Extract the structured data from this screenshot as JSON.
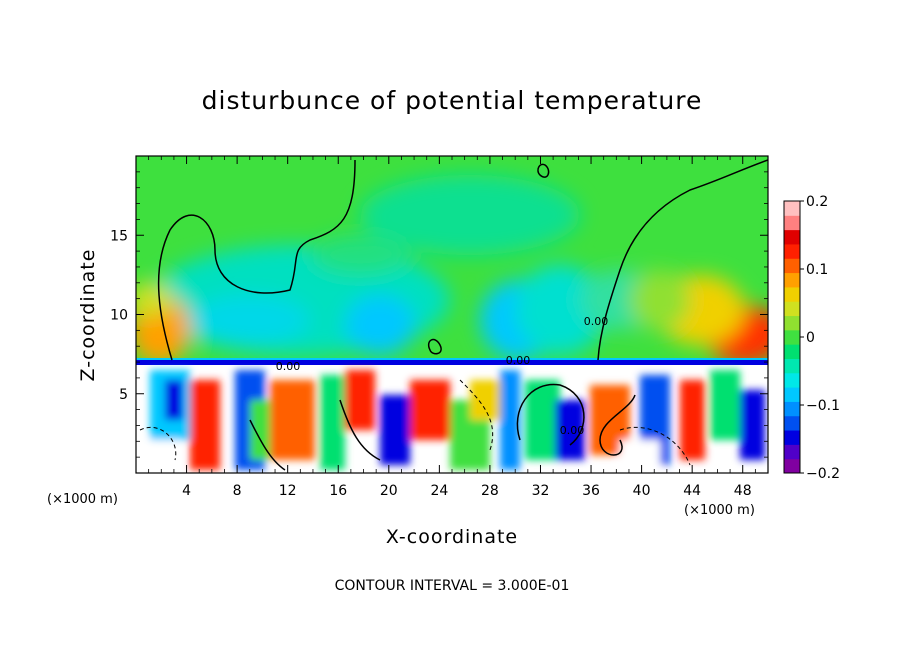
{
  "chart_data": {
    "type": "heatmap",
    "title": "disturbunce of potential temperature",
    "xlabel": "X-coordinate",
    "ylabel": "Z-coordinate",
    "x_unit": "(×1000 m)",
    "x_ticks": [
      "4",
      "8",
      "12",
      "16",
      "20",
      "24",
      "28",
      "32",
      "36",
      "40",
      "44",
      "48"
    ],
    "x_tick_values": [
      4,
      8,
      12,
      16,
      20,
      24,
      28,
      32,
      36,
      40,
      44,
      48
    ],
    "y_ticks": [
      "5",
      "10",
      "15"
    ],
    "y_tick_values": [
      5,
      10,
      15
    ],
    "xlim": [
      0,
      50
    ],
    "ylim": [
      0,
      20
    ],
    "colorbar": {
      "range": [
        -0.2,
        0.2
      ],
      "ticks": [
        "0.2",
        "0.1",
        "0",
        "−0.1",
        "−0.2"
      ],
      "tick_values": [
        0.2,
        0.1,
        0,
        -0.1,
        -0.2
      ],
      "colors": [
        "#8000a0",
        "#5000c8",
        "#0000e0",
        "#0050f0",
        "#0090ff",
        "#00c8ff",
        "#00e8e8",
        "#00e8b0",
        "#00e070",
        "#40e040",
        "#90e030",
        "#d0e020",
        "#f0d000",
        "#ffa000",
        "#ff6000",
        "#ff2000",
        "#e00000",
        "#ff8080",
        "#ffc0c0"
      ]
    },
    "contour_interval": "CONTOUR INTERVAL = 3.000E-01",
    "contour_labels": [
      "0.00",
      "0.00",
      "0.00",
      "0.00"
    ]
  }
}
